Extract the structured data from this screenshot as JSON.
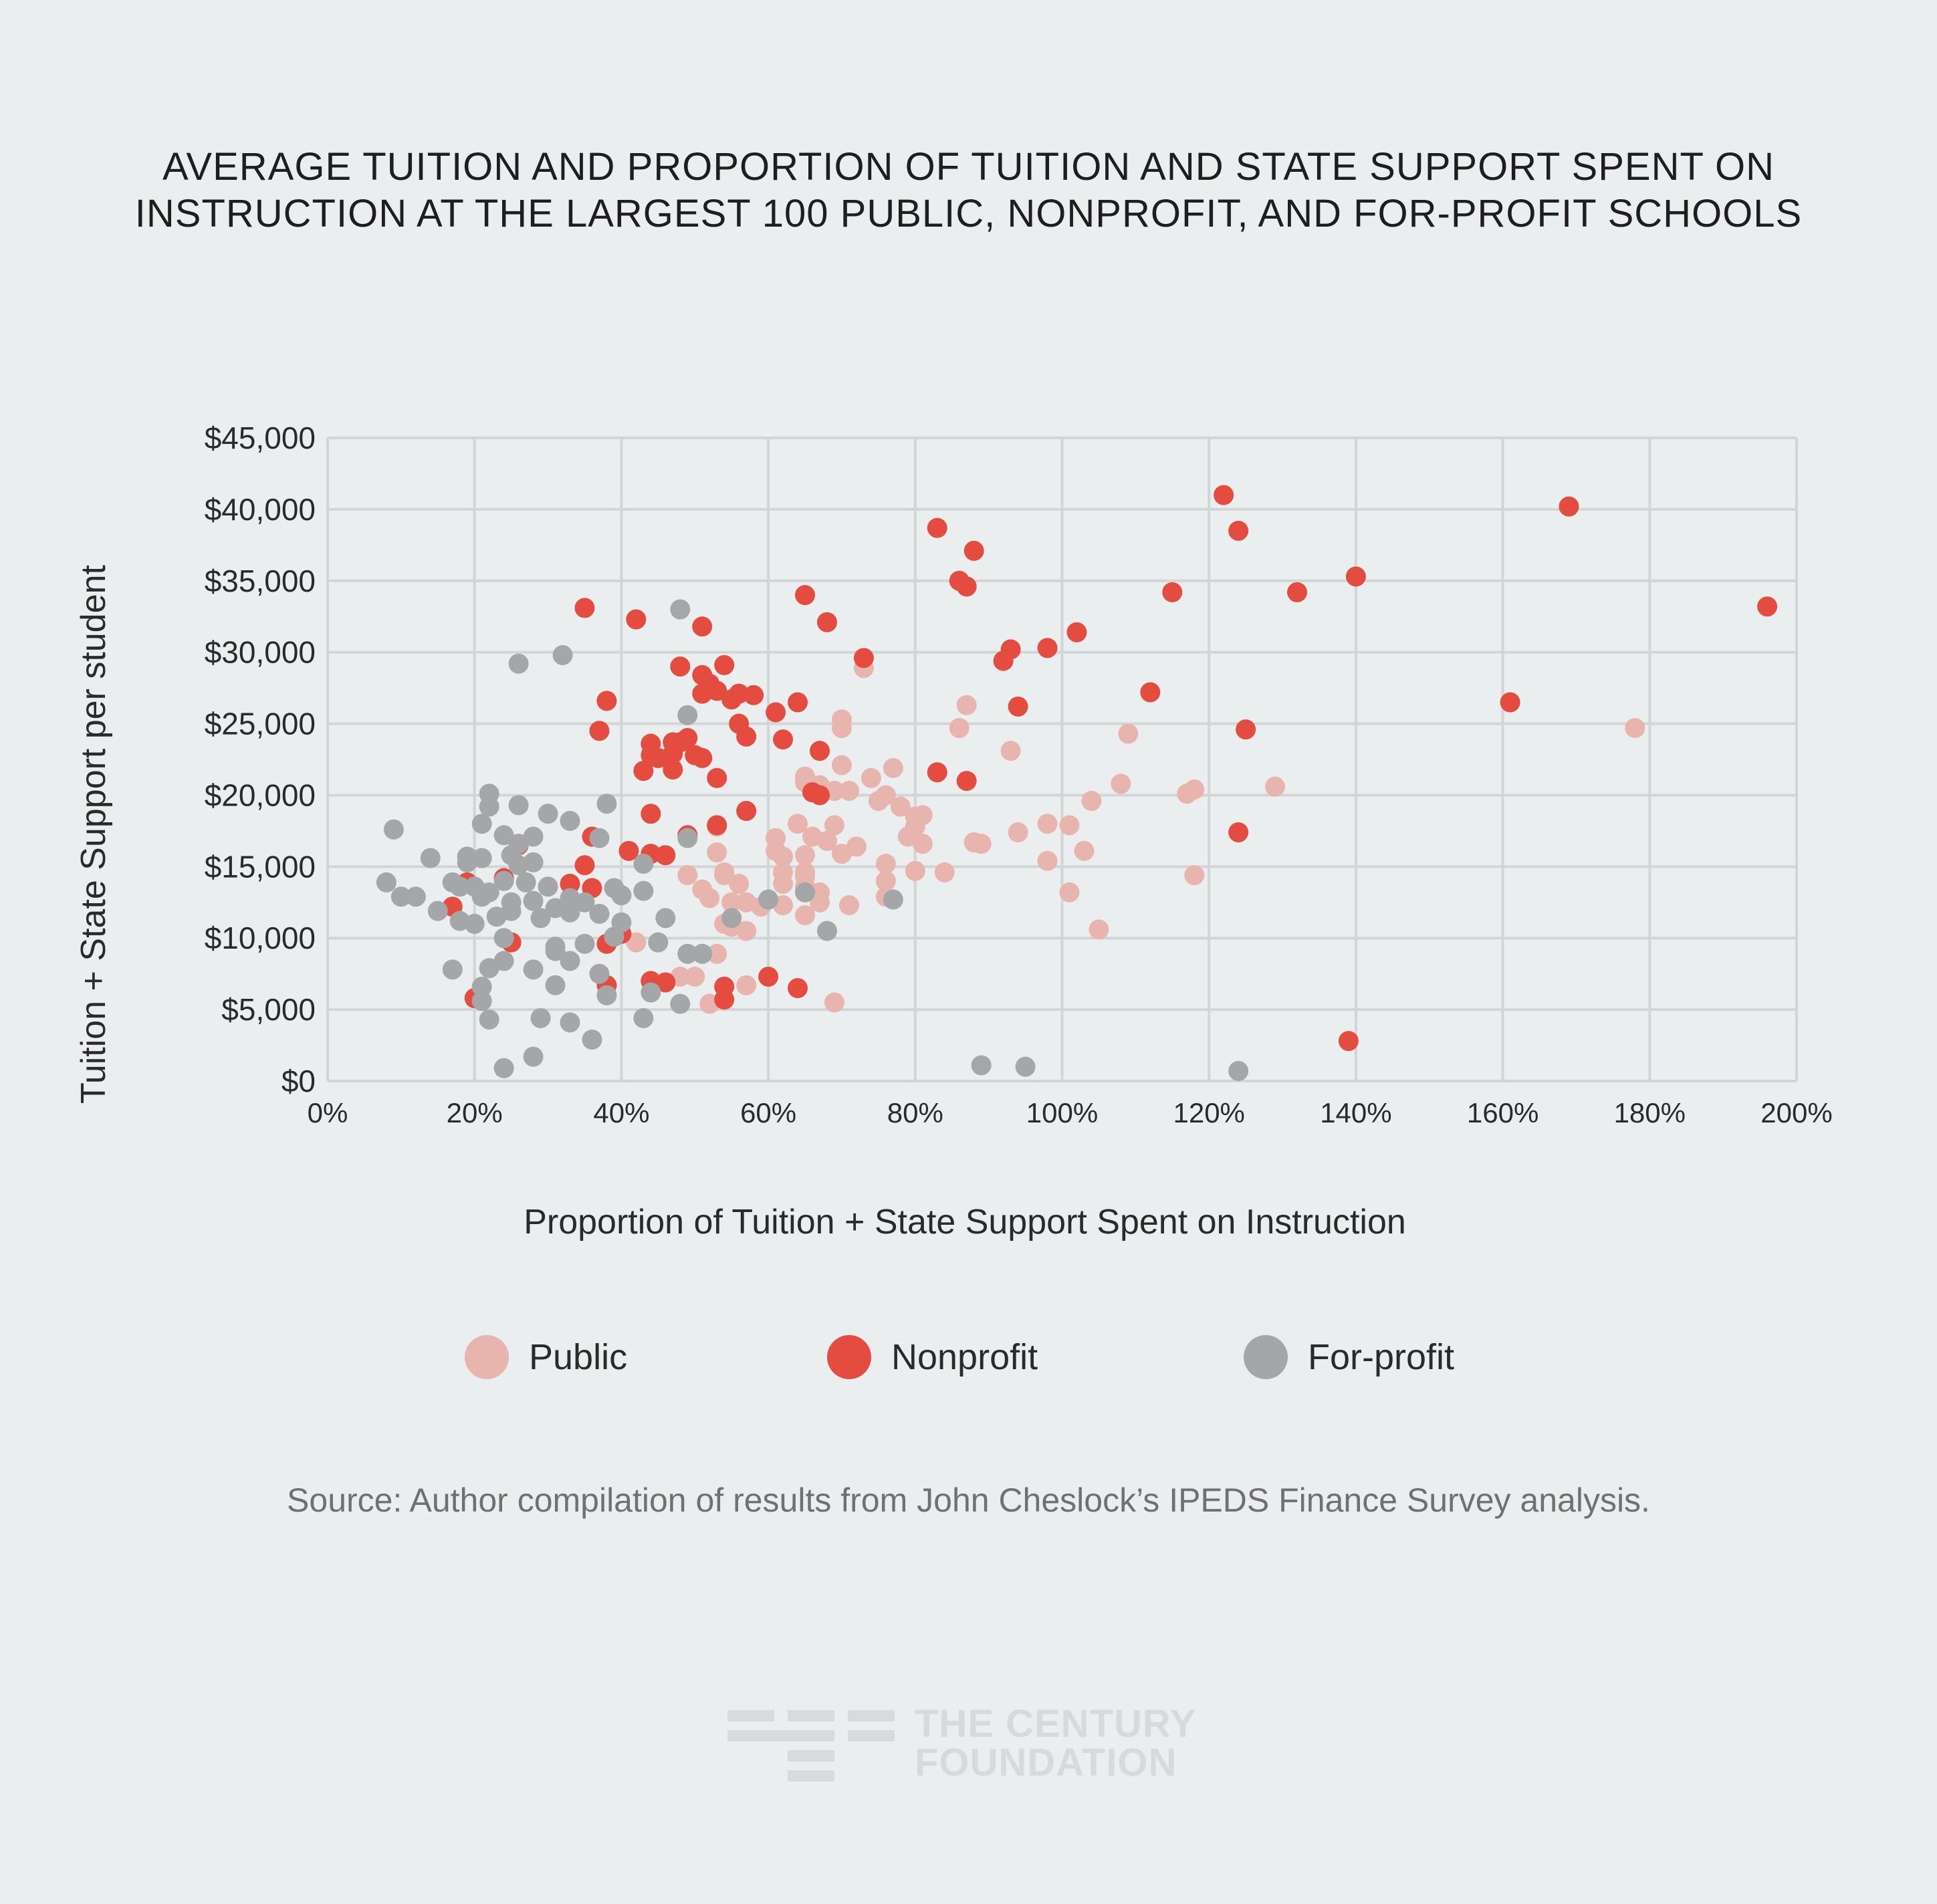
{
  "title": {
    "line1": "AVERAGE TUITION AND PROPORTION OF TUITION AND STATE SUPPORT SPENT ON",
    "line2": "INSTRUCTION AT THE LARGEST 100 PUBLIC, NONPROFIT, AND FOR-PROFIT SCHOOLS"
  },
  "legend": [
    {
      "label": "Public",
      "color": "#e8b4ae"
    },
    {
      "label": "Nonprofit",
      "color": "#e34c3e"
    },
    {
      "label": "For-profit",
      "color": "#a5a6a8"
    }
  ],
  "source": "Source: Author compilation of results from John Cheslock’s IPEDS Finance Survey analysis.",
  "logo": {
    "line1": "THE CENTURY",
    "line2": "FOUNDATION"
  },
  "chart_data": {
    "type": "scatter",
    "xlabel": "Proportion of Tuition + State Support Spent on Instruction",
    "ylabel": "Tuition + State Support per student",
    "xlim": [
      0,
      200
    ],
    "ylim": [
      0,
      45000
    ],
    "xticks": [
      0,
      20,
      40,
      60,
      80,
      100,
      120,
      140,
      160,
      180,
      200
    ],
    "xtick_labels": [
      "0%",
      "20%",
      "40%",
      "60%",
      "80%",
      "100%",
      "120%",
      "140%",
      "160%",
      "180%",
      "200%"
    ],
    "yticks": [
      0,
      5000,
      10000,
      15000,
      20000,
      25000,
      30000,
      35000,
      40000,
      45000
    ],
    "ytick_labels": [
      "$0",
      "$5,000",
      "$10,000",
      "$15,000",
      "$20,000",
      "$25,000",
      "$30,000",
      "$35,000",
      "$40,000",
      "$45,000"
    ],
    "grid": true,
    "series": [
      {
        "name": "Public",
        "color": "#e8b4ae",
        "points": [
          [
            73,
            28900
          ],
          [
            70,
            25300
          ],
          [
            70,
            24700
          ],
          [
            86,
            24700
          ],
          [
            87,
            26300
          ],
          [
            178,
            24700
          ],
          [
            109,
            24300
          ],
          [
            93,
            23100
          ],
          [
            70,
            22100
          ],
          [
            77,
            21900
          ],
          [
            74,
            21200
          ],
          [
            65,
            21300
          ],
          [
            69,
            20300
          ],
          [
            65,
            20900
          ],
          [
            67,
            20700
          ],
          [
            71,
            20300
          ],
          [
            108,
            20800
          ],
          [
            118,
            20400
          ],
          [
            117,
            20100
          ],
          [
            129,
            20600
          ],
          [
            75,
            19600
          ],
          [
            78,
            19200
          ],
          [
            76,
            20000
          ],
          [
            80,
            18500
          ],
          [
            81,
            18600
          ],
          [
            80,
            17800
          ],
          [
            79,
            17100
          ],
          [
            104,
            19600
          ],
          [
            64,
            18000
          ],
          [
            69,
            17900
          ],
          [
            98,
            18000
          ],
          [
            101,
            17900
          ],
          [
            94,
            17400
          ],
          [
            61,
            17000
          ],
          [
            66,
            17100
          ],
          [
            68,
            16800
          ],
          [
            53,
            17800
          ],
          [
            53,
            16000
          ],
          [
            72,
            16400
          ],
          [
            61,
            16100
          ],
          [
            62,
            15700
          ],
          [
            70,
            15900
          ],
          [
            65,
            15800
          ],
          [
            81,
            16600
          ],
          [
            88,
            16700
          ],
          [
            89,
            16600
          ],
          [
            103,
            16100
          ],
          [
            98,
            15400
          ],
          [
            76,
            15200
          ],
          [
            62,
            14600
          ],
          [
            54,
            14400
          ],
          [
            54,
            14600
          ],
          [
            56,
            13800
          ],
          [
            49,
            14400
          ],
          [
            65,
            14300
          ],
          [
            65,
            14600
          ],
          [
            76,
            14000
          ],
          [
            80,
            14700
          ],
          [
            84,
            14600
          ],
          [
            118,
            14400
          ],
          [
            62,
            13800
          ],
          [
            65,
            13600
          ],
          [
            67,
            13200
          ],
          [
            101,
            13200
          ],
          [
            51,
            13400
          ],
          [
            52,
            12800
          ],
          [
            55,
            12500
          ],
          [
            57,
            12500
          ],
          [
            59,
            12200
          ],
          [
            62,
            12300
          ],
          [
            67,
            12500
          ],
          [
            71,
            12300
          ],
          [
            65,
            11600
          ],
          [
            76,
            12900
          ],
          [
            54,
            11000
          ],
          [
            57,
            10500
          ],
          [
            55,
            10800
          ],
          [
            105,
            10600
          ],
          [
            42,
            9700
          ],
          [
            53,
            8900
          ],
          [
            48,
            7300
          ],
          [
            50,
            7300
          ],
          [
            57,
            6700
          ],
          [
            52,
            5400
          ],
          [
            69,
            5500
          ]
        ]
      },
      {
        "name": "Nonprofit",
        "color": "#e34c3e",
        "points": [
          [
            122,
            41000
          ],
          [
            169,
            40200
          ],
          [
            124,
            38500
          ],
          [
            83,
            38700
          ],
          [
            88,
            37100
          ],
          [
            86,
            35000
          ],
          [
            87,
            34600
          ],
          [
            140,
            35300
          ],
          [
            115,
            34200
          ],
          [
            132,
            34200
          ],
          [
            196,
            33200
          ],
          [
            35,
            33100
          ],
          [
            42,
            32300
          ],
          [
            65,
            34000
          ],
          [
            68,
            32100
          ],
          [
            51,
            31800
          ],
          [
            102,
            31400
          ],
          [
            98,
            30300
          ],
          [
            93,
            30200
          ],
          [
            92,
            29400
          ],
          [
            73,
            29600
          ],
          [
            54,
            29100
          ],
          [
            48,
            29000
          ],
          [
            51,
            28400
          ],
          [
            52,
            27800
          ],
          [
            53,
            27300
          ],
          [
            56,
            27100
          ],
          [
            58,
            27000
          ],
          [
            51,
            27100
          ],
          [
            112,
            27200
          ],
          [
            38,
            26600
          ],
          [
            64,
            26500
          ],
          [
            55,
            26700
          ],
          [
            61,
            25800
          ],
          [
            94,
            26200
          ],
          [
            161,
            26500
          ],
          [
            56,
            25000
          ],
          [
            125,
            24600
          ],
          [
            37,
            24500
          ],
          [
            57,
            24100
          ],
          [
            62,
            23900
          ],
          [
            48,
            23700
          ],
          [
            44,
            23600
          ],
          [
            47,
            23700
          ],
          [
            49,
            24000
          ],
          [
            44,
            22800
          ],
          [
            45,
            22600
          ],
          [
            47,
            22900
          ],
          [
            50,
            22800
          ],
          [
            51,
            22600
          ],
          [
            67,
            23100
          ],
          [
            43,
            21700
          ],
          [
            47,
            21800
          ],
          [
            53,
            21200
          ],
          [
            83,
            21600
          ],
          [
            87,
            21000
          ],
          [
            66,
            20200
          ],
          [
            67,
            20000
          ],
          [
            57,
            18900
          ],
          [
            44,
            18700
          ],
          [
            53,
            17900
          ],
          [
            49,
            17200
          ],
          [
            36,
            17100
          ],
          [
            124,
            17400
          ],
          [
            26,
            16500
          ],
          [
            41,
            16100
          ],
          [
            44,
            15900
          ],
          [
            46,
            15800
          ],
          [
            35,
            15100
          ],
          [
            36,
            13500
          ],
          [
            33,
            13800
          ],
          [
            19,
            13900
          ],
          [
            24,
            14200
          ],
          [
            17,
            12200
          ],
          [
            40,
            10300
          ],
          [
            38,
            9600
          ],
          [
            25,
            9700
          ],
          [
            60,
            7300
          ],
          [
            54,
            6600
          ],
          [
            46,
            6900
          ],
          [
            64,
            6500
          ],
          [
            38,
            6700
          ],
          [
            44,
            7000
          ],
          [
            20,
            5800
          ],
          [
            54,
            5700
          ],
          [
            139,
            2800
          ]
        ]
      },
      {
        "name": "For-profit",
        "color": "#a5a6a8",
        "points": [
          [
            48,
            33000
          ],
          [
            32,
            29800
          ],
          [
            26,
            29200
          ],
          [
            49,
            25600
          ],
          [
            22,
            20100
          ],
          [
            22,
            19200
          ],
          [
            26,
            19300
          ],
          [
            30,
            18700
          ],
          [
            38,
            19400
          ],
          [
            21,
            18000
          ],
          [
            33,
            18200
          ],
          [
            37,
            17000
          ],
          [
            9,
            17600
          ],
          [
            24,
            17200
          ],
          [
            28,
            17100
          ],
          [
            26,
            16600
          ],
          [
            19,
            15700
          ],
          [
            19,
            15300
          ],
          [
            21,
            15600
          ],
          [
            14,
            15600
          ],
          [
            25,
            15800
          ],
          [
            26,
            15100
          ],
          [
            28,
            15300
          ],
          [
            43,
            15200
          ],
          [
            17,
            13900
          ],
          [
            18,
            13600
          ],
          [
            20,
            13600
          ],
          [
            22,
            13200
          ],
          [
            24,
            14000
          ],
          [
            27,
            13900
          ],
          [
            30,
            13600
          ],
          [
            8,
            13900
          ],
          [
            10,
            12900
          ],
          [
            12,
            12900
          ],
          [
            21,
            12900
          ],
          [
            25,
            12500
          ],
          [
            28,
            12600
          ],
          [
            31,
            12100
          ],
          [
            33,
            12800
          ],
          [
            35,
            12500
          ],
          [
            39,
            13500
          ],
          [
            40,
            13000
          ],
          [
            43,
            13300
          ],
          [
            49,
            17000
          ],
          [
            15,
            11900
          ],
          [
            18,
            11200
          ],
          [
            20,
            11000
          ],
          [
            23,
            11500
          ],
          [
            25,
            11900
          ],
          [
            29,
            11400
          ],
          [
            33,
            11800
          ],
          [
            37,
            11700
          ],
          [
            40,
            11100
          ],
          [
            46,
            11400
          ],
          [
            55,
            11400
          ],
          [
            60,
            12700
          ],
          [
            65,
            13200
          ],
          [
            68,
            10500
          ],
          [
            77,
            12700
          ],
          [
            24,
            10000
          ],
          [
            31,
            9400
          ],
          [
            35,
            9600
          ],
          [
            39,
            10100
          ],
          [
            45,
            9700
          ],
          [
            49,
            8900
          ],
          [
            51,
            8900
          ],
          [
            31,
            9100
          ],
          [
            33,
            8400
          ],
          [
            17,
            7800
          ],
          [
            22,
            7900
          ],
          [
            24,
            8400
          ],
          [
            28,
            7800
          ],
          [
            31,
            6700
          ],
          [
            37,
            7500
          ],
          [
            38,
            6000
          ],
          [
            44,
            6200
          ],
          [
            48,
            5400
          ],
          [
            21,
            6600
          ],
          [
            21,
            5600
          ],
          [
            22,
            4300
          ],
          [
            29,
            4400
          ],
          [
            33,
            4100
          ],
          [
            43,
            4400
          ],
          [
            36,
            2900
          ],
          [
            28,
            1700
          ],
          [
            24,
            900
          ],
          [
            89,
            1100
          ],
          [
            95,
            1000
          ],
          [
            124,
            700
          ]
        ]
      }
    ]
  }
}
